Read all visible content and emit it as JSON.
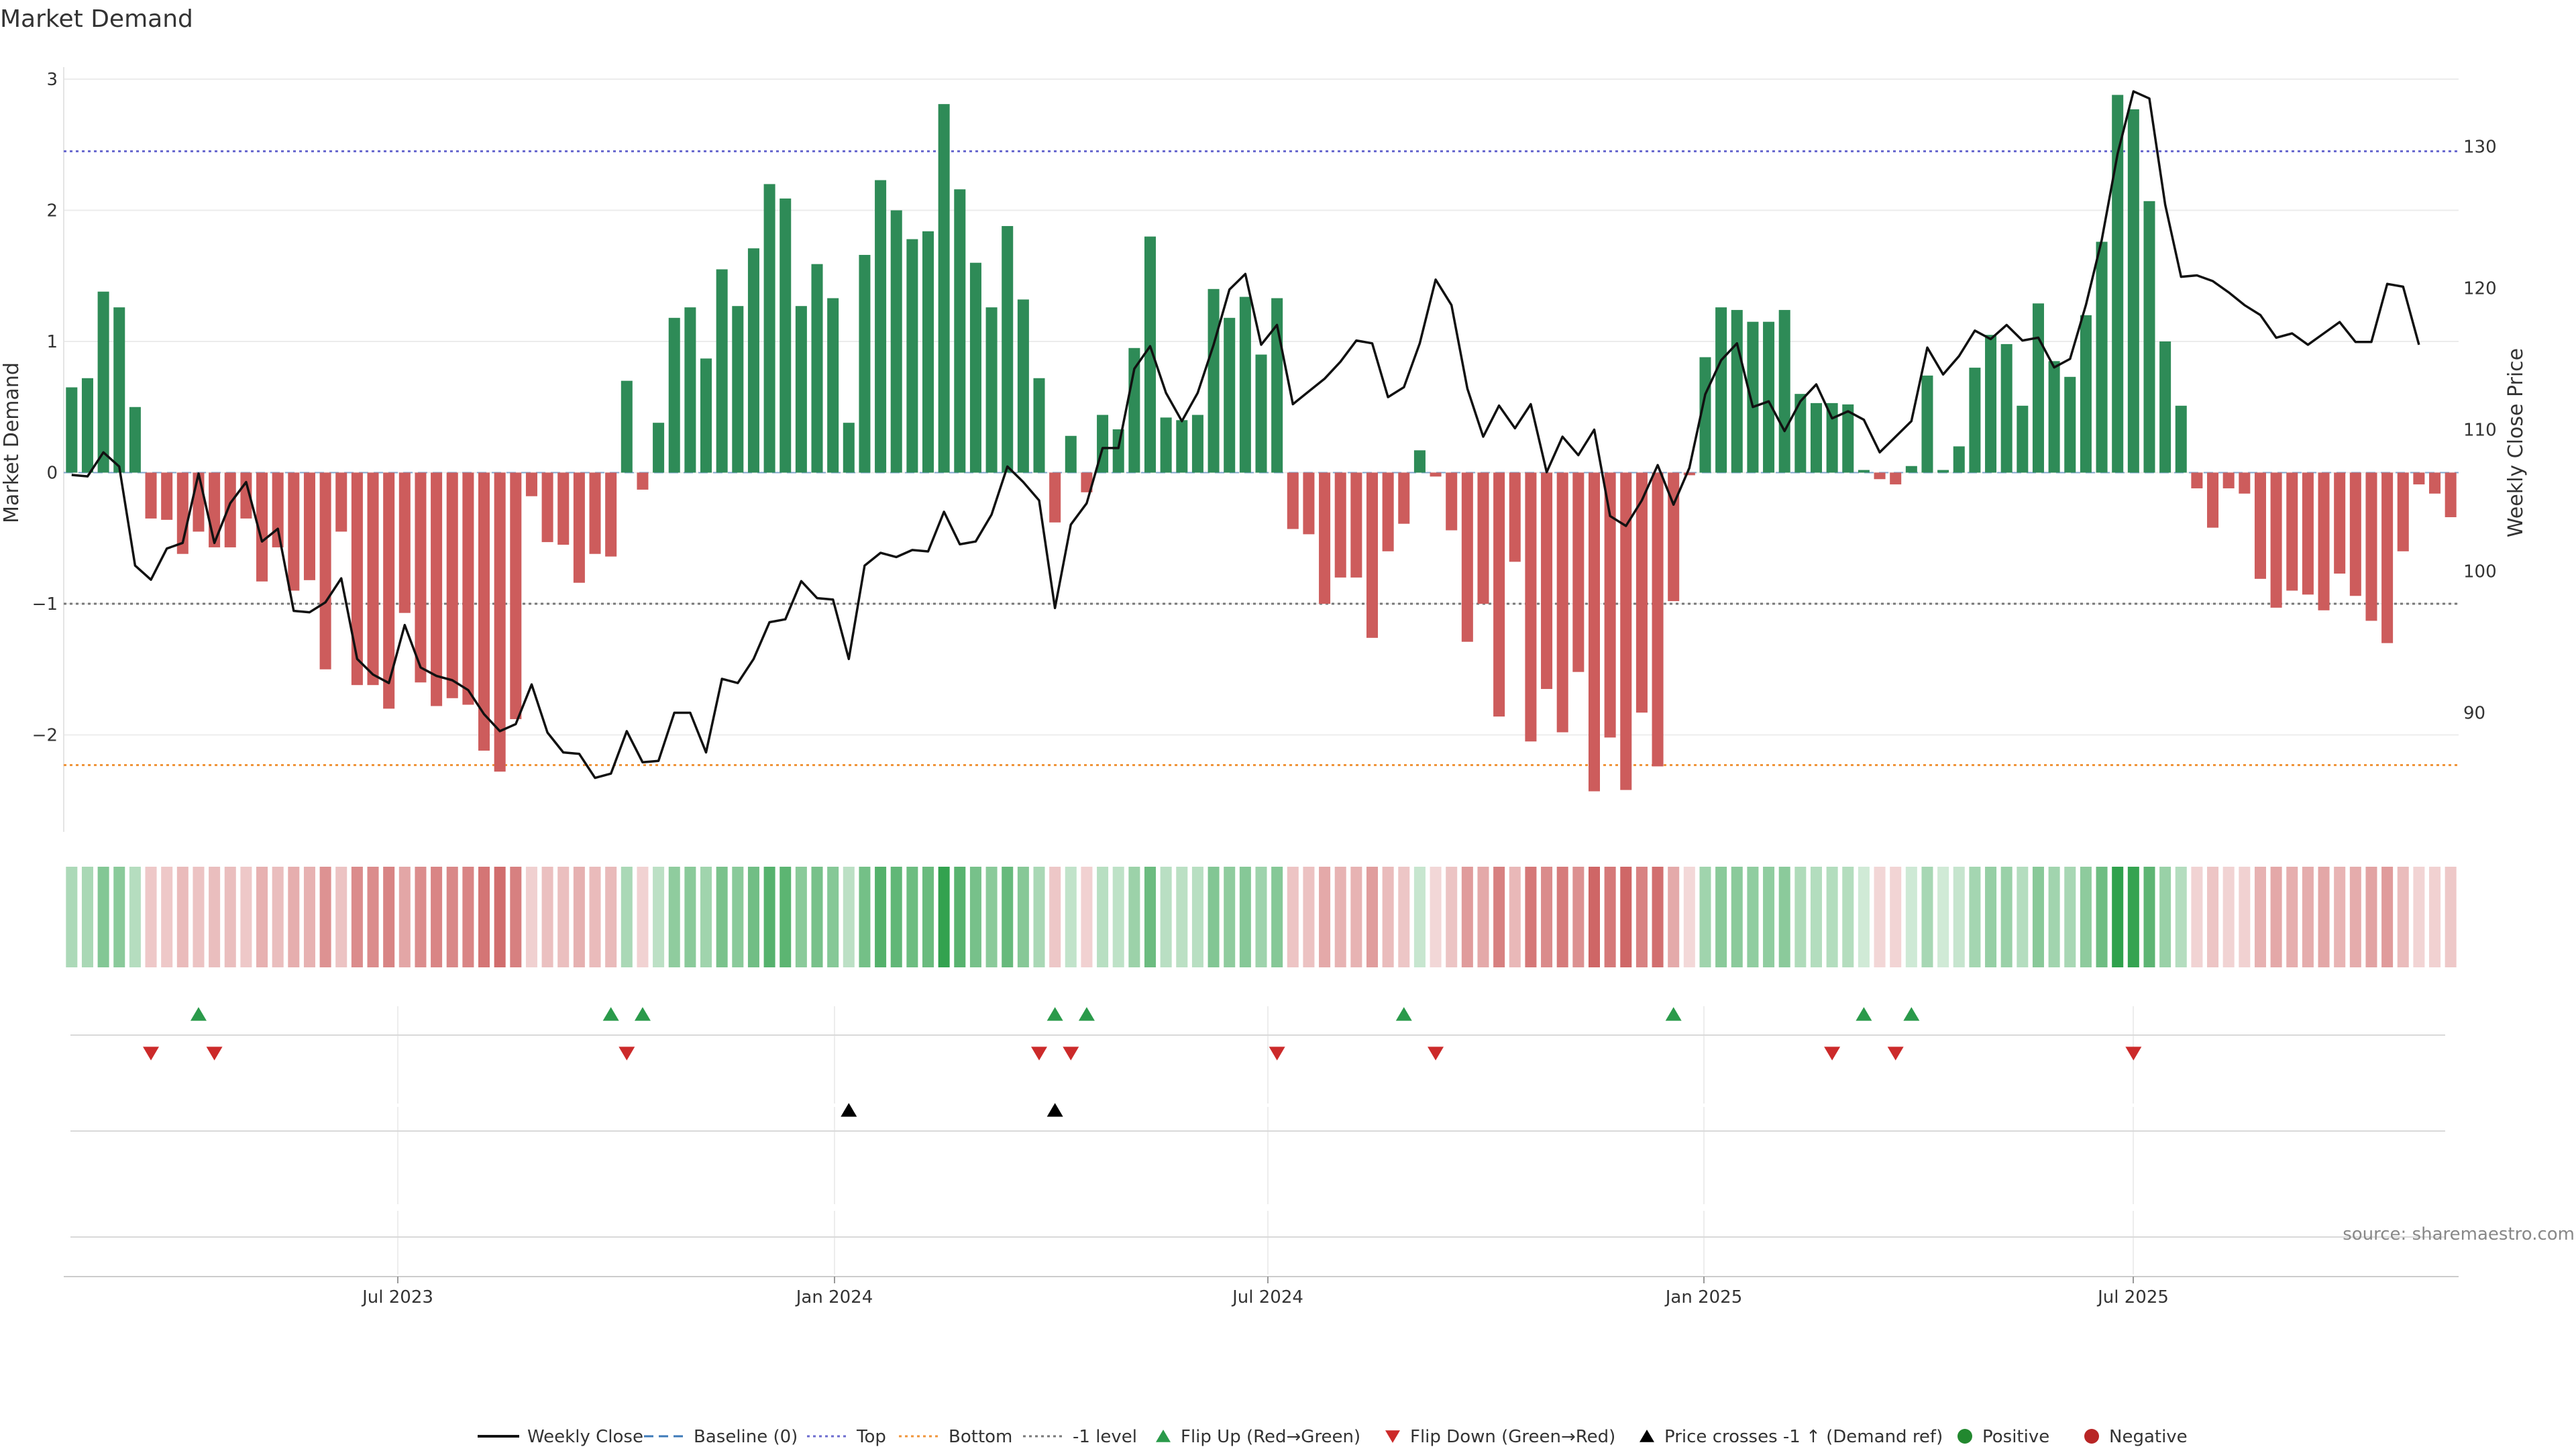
{
  "chart_data": {
    "type": "bar",
    "title": "Market Demand",
    "ylabel": "Market Demand",
    "y2label": "Weekly Close Price",
    "ylim": [
      -2.75,
      3.05
    ],
    "y2lim": [
      83.5,
      135.8
    ],
    "yticks": [
      "3",
      "2",
      "1",
      "0",
      "−1",
      "−2"
    ],
    "y2ticks": [
      "130",
      "120",
      "110",
      "100",
      "90"
    ],
    "xticks": [
      "Jul 2023",
      "Jan 2024",
      "Jul 2024",
      "Jan 2025",
      "Jul 2025"
    ],
    "reference_lines": {
      "top": 2.45,
      "bottom": -2.23,
      "minus1": -1.0,
      "baseline": 0
    },
    "demand": [
      0.65,
      0.72,
      1.38,
      1.26,
      0.5,
      -0.35,
      -0.36,
      -0.62,
      -0.45,
      -0.57,
      -0.57,
      -0.35,
      -0.83,
      -0.57,
      -0.9,
      -0.82,
      -1.5,
      -0.45,
      -1.62,
      -1.62,
      -1.8,
      -1.07,
      -1.6,
      -1.78,
      -1.72,
      -1.77,
      -2.12,
      -2.28,
      -1.88,
      -0.18,
      -0.53,
      -0.55,
      -0.84,
      -0.62,
      -0.64,
      0.7,
      -0.13,
      0.38,
      1.18,
      1.26,
      0.87,
      1.55,
      1.27,
      1.71,
      2.2,
      2.09,
      1.27,
      1.59,
      1.33,
      0.38,
      1.66,
      2.23,
      2.0,
      1.78,
      1.84,
      2.81,
      2.16,
      1.6,
      1.26,
      1.88,
      1.32,
      0.72,
      -0.38,
      0.28,
      -0.15,
      0.44,
      0.33,
      0.95,
      1.8,
      0.42,
      0.4,
      0.44,
      1.4,
      1.18,
      1.34,
      0.9,
      1.33,
      -0.43,
      -0.47,
      -1.0,
      -0.8,
      -0.8,
      -1.26,
      -0.6,
      -0.39,
      0.17,
      -0.03,
      -0.44,
      -1.29,
      -1.0,
      -1.86,
      -0.68,
      -2.05,
      -1.65,
      -1.98,
      -1.52,
      -2.43,
      -2.02,
      -2.42,
      -1.83,
      -2.24,
      -0.98,
      -0.02,
      0.88,
      1.26,
      1.24,
      1.15,
      1.15,
      1.24,
      0.6,
      0.53,
      0.53,
      0.52,
      0.02,
      -0.05,
      -0.09,
      0.05,
      0.74,
      0.02,
      0.2,
      0.8,
      1.05,
      0.98,
      0.51,
      1.29,
      0.85,
      0.73,
      1.2,
      1.76,
      2.88,
      2.77,
      2.07,
      1.0,
      0.51,
      -0.12,
      -0.42,
      -0.12,
      -0.16,
      -0.81,
      -1.03,
      -0.9,
      -0.93,
      -1.05,
      -0.77,
      -0.94,
      -1.13,
      -1.3,
      -0.6,
      -0.09,
      -0.16,
      -0.34
    ],
    "weekly_close": [
      106.8,
      106.7,
      108.4,
      107.4,
      100.4,
      99.4,
      101.6,
      102.0,
      106.9,
      102.0,
      104.8,
      106.3,
      102.1,
      103.0,
      97.2,
      97.1,
      97.8,
      99.5,
      93.8,
      92.7,
      92.1,
      96.2,
      93.2,
      92.6,
      92.3,
      91.6,
      89.9,
      88.7,
      89.2,
      92.0,
      88.6,
      87.2,
      87.1,
      85.4,
      85.7,
      88.7,
      86.5,
      86.6,
      90.0,
      90.0,
      87.2,
      92.4,
      92.1,
      93.8,
      96.4,
      96.6,
      99.3,
      98.1,
      98.0,
      93.8,
      100.4,
      101.3,
      101.0,
      101.5,
      101.4,
      104.2,
      101.9,
      102.1,
      104.0,
      107.4,
      106.3,
      105.0,
      97.4,
      103.3,
      104.8,
      108.7,
      108.7,
      114.3,
      115.9,
      112.6,
      110.6,
      112.6,
      116.0,
      119.9,
      121.0,
      116.0,
      117.4,
      111.8,
      112.7,
      113.6,
      114.8,
      116.3,
      116.1,
      112.3,
      113.0,
      116.1,
      120.6,
      118.8,
      112.9,
      109.5,
      111.7,
      110.1,
      111.8,
      107.0,
      109.5,
      108.2,
      110.0,
      103.9,
      103.2,
      105.0,
      107.5,
      104.7,
      107.3,
      112.5,
      114.9,
      116.1,
      111.6,
      112.0,
      109.9,
      112.0,
      113.2,
      110.8,
      111.3,
      110.7,
      108.4,
      109.5,
      110.6,
      115.8,
      113.9,
      115.2,
      117.0,
      116.4,
      117.4,
      116.3,
      116.5,
      114.4,
      115.0,
      118.8,
      123.4,
      129.5,
      133.9,
      133.4,
      125.9,
      120.8,
      120.9,
      120.5,
      119.7,
      118.8,
      118.1,
      116.5,
      116.8,
      116.0,
      116.8,
      117.6,
      116.2,
      116.2,
      120.3,
      120.1,
      116.0
    ],
    "series": [
      {
        "name": "Market Demand",
        "values_ref": "demand"
      },
      {
        "name": "Weekly Close",
        "values_ref": "weekly_close"
      }
    ],
    "signals": {
      "flip_up_weeks": [
        8,
        34,
        36,
        62,
        64,
        84,
        101,
        113,
        116
      ],
      "flip_down_weeks": [
        5,
        9,
        35,
        61,
        63,
        76,
        86,
        111,
        115,
        130
      ],
      "price_cross_weeks": [
        49,
        62
      ]
    },
    "legend": [
      {
        "label": "Weekly Close",
        "kind": "line",
        "color": "#111111"
      },
      {
        "label": "Baseline (0)",
        "kind": "dashed",
        "color": "#3d7ab8"
      },
      {
        "label": "Top",
        "kind": "dotted",
        "color": "#6b6bcf"
      },
      {
        "label": "Bottom",
        "kind": "dotted",
        "color": "#f0953a"
      },
      {
        "label": "-1 level",
        "kind": "dotted",
        "color": "#777777"
      },
      {
        "label": "Flip Up (Red→Green)",
        "kind": "tri-up",
        "color": "#2a9a4a"
      },
      {
        "label": "Flip Down (Green→Red)",
        "kind": "tri-down",
        "color": "#cc2a2a"
      },
      {
        "label": "Price crosses -1 ↑ (Demand ref)",
        "kind": "tri-up",
        "color": "#000000"
      },
      {
        "label": "Positive",
        "kind": "dot",
        "color": "#22882f"
      },
      {
        "label": "Negative",
        "kind": "dot",
        "color": "#b82525"
      }
    ],
    "legend_position": "bottom-center",
    "source": "source: sharemaestro.com"
  },
  "colors": {
    "positive_bar": "#2e8b57",
    "negative_bar": "#cd5c5c",
    "price_line": "#111111",
    "grid": "#ececec"
  }
}
